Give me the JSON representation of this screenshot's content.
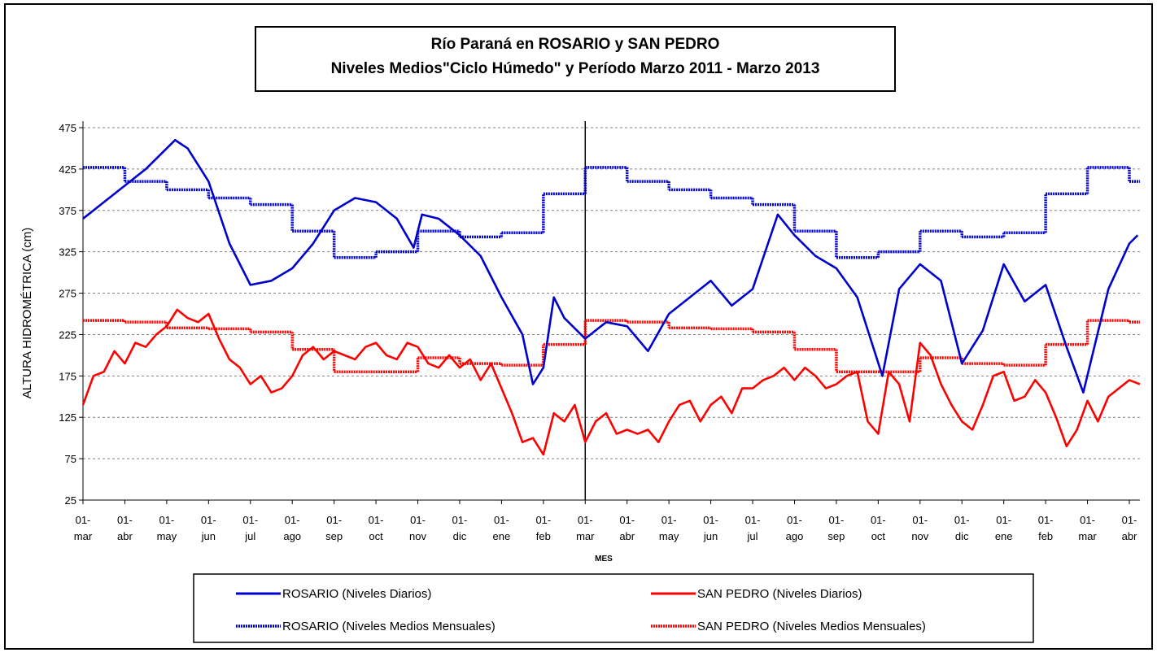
{
  "chart_data": {
    "type": "line",
    "title": "Río Paraná en ROSARIO y SAN PEDRO",
    "subtitle": "Niveles Medios\"Ciclo Húmedo\" y Período Marzo 2011 - Marzo 2013",
    "ylabel": "ALTURA HIDROMÉTRICA (cm)",
    "xlabel": "MES",
    "ylim": [
      25,
      475
    ],
    "yticks": [
      25,
      75,
      125,
      175,
      225,
      275,
      325,
      375,
      425,
      475
    ],
    "grid": true,
    "xlim": [
      0,
      25.25
    ],
    "xticks": [
      {
        "value": 0,
        "label": "01- mar"
      },
      {
        "value": 1,
        "label": "01- abr"
      },
      {
        "value": 2,
        "label": "01- may"
      },
      {
        "value": 3,
        "label": "01- jun"
      },
      {
        "value": 4,
        "label": "01- jul"
      },
      {
        "value": 5,
        "label": "01- ago"
      },
      {
        "value": 6,
        "label": "01- sep"
      },
      {
        "value": 7,
        "label": "01- oct"
      },
      {
        "value": 8,
        "label": "01- nov"
      },
      {
        "value": 9,
        "label": "01- dic"
      },
      {
        "value": 10,
        "label": "01- ene"
      },
      {
        "value": 11,
        "label": "01- feb"
      },
      {
        "value": 12,
        "label": "01- mar"
      },
      {
        "value": 13,
        "label": "01- abr"
      },
      {
        "value": 14,
        "label": "01- may"
      },
      {
        "value": 15,
        "label": "01- jun"
      },
      {
        "value": 16,
        "label": "01- jul"
      },
      {
        "value": 17,
        "label": "01- ago"
      },
      {
        "value": 18,
        "label": "01- sep"
      },
      {
        "value": 19,
        "label": "01- oct"
      },
      {
        "value": 20,
        "label": "01- nov"
      },
      {
        "value": 21,
        "label": "01- dic"
      },
      {
        "value": 22,
        "label": "01- ene"
      },
      {
        "value": 23,
        "label": "01- feb"
      },
      {
        "value": 24,
        "label": "01- mar"
      },
      {
        "value": 25,
        "label": "01- abr"
      }
    ],
    "vline": 12,
    "series": [
      {
        "name": "ROSARIO (Niveles Diarios)",
        "color": "#0000cc",
        "style": "solid",
        "x": [
          0,
          0.5,
          1,
          1.5,
          2,
          2.2,
          2.5,
          3,
          3.5,
          4,
          4.5,
          5,
          5.5,
          6,
          6.5,
          7,
          7.5,
          7.9,
          8.1,
          8.5,
          9,
          9.5,
          10,
          10.5,
          10.75,
          11,
          11.25,
          11.5,
          12,
          12.5,
          13,
          13.5,
          14,
          14.5,
          15,
          15.5,
          16,
          16.6,
          17,
          17.5,
          18,
          18.5,
          19.1,
          19.5,
          20,
          20.5,
          21,
          21.5,
          22,
          22.5,
          23,
          23.5,
          23.9,
          24.5,
          25,
          25.2
        ],
        "values": [
          365,
          385,
          405,
          425,
          450,
          460,
          450,
          410,
          335,
          285,
          290,
          305,
          335,
          375,
          390,
          385,
          365,
          330,
          370,
          365,
          345,
          320,
          270,
          225,
          165,
          185,
          270,
          245,
          220,
          240,
          235,
          205,
          250,
          270,
          290,
          260,
          280,
          370,
          345,
          320,
          305,
          270,
          175,
          280,
          310,
          290,
          190,
          230,
          310,
          265,
          285,
          210,
          155,
          280,
          335,
          345
        ]
      },
      {
        "name": "SAN PEDRO (Niveles Diarios)",
        "color": "#ff0000",
        "style": "solid",
        "x": [
          0,
          0.25,
          0.5,
          0.75,
          1,
          1.25,
          1.5,
          1.75,
          2,
          2.25,
          2.5,
          2.75,
          3,
          3.25,
          3.5,
          3.75,
          4,
          4.25,
          4.5,
          4.75,
          5,
          5.25,
          5.5,
          5.75,
          6,
          6.25,
          6.5,
          6.75,
          7,
          7.25,
          7.5,
          7.75,
          8,
          8.25,
          8.5,
          8.75,
          9,
          9.25,
          9.5,
          9.75,
          10,
          10.25,
          10.5,
          10.75,
          11,
          11.25,
          11.5,
          11.75,
          12,
          12.25,
          12.5,
          12.75,
          13,
          13.25,
          13.5,
          13.75,
          14,
          14.25,
          14.5,
          14.75,
          15,
          15.25,
          15.5,
          15.75,
          16,
          16.25,
          16.5,
          16.75,
          17,
          17.25,
          17.5,
          17.75,
          18,
          18.25,
          18.5,
          18.75,
          19,
          19.25,
          19.5,
          19.75,
          20,
          20.25,
          20.5,
          20.75,
          21,
          21.25,
          21.5,
          21.75,
          22,
          22.25,
          22.5,
          22.75,
          23,
          23.25,
          23.5,
          23.75,
          24,
          24.25,
          24.5,
          24.75,
          25,
          25.25
        ],
        "values": [
          140,
          175,
          180,
          205,
          190,
          215,
          210,
          225,
          235,
          255,
          245,
          240,
          250,
          220,
          195,
          185,
          165,
          175,
          155,
          160,
          175,
          200,
          210,
          195,
          205,
          200,
          195,
          210,
          215,
          200,
          195,
          215,
          210,
          190,
          185,
          200,
          185,
          195,
          170,
          190,
          160,
          130,
          95,
          100,
          80,
          130,
          120,
          140,
          95,
          120,
          130,
          105,
          110,
          105,
          110,
          95,
          120,
          140,
          145,
          120,
          140,
          150,
          130,
          160,
          160,
          170,
          175,
          185,
          170,
          185,
          175,
          160,
          165,
          175,
          180,
          120,
          105,
          180,
          165,
          120,
          215,
          200,
          165,
          140,
          120,
          110,
          140,
          175,
          180,
          145,
          150,
          170,
          155,
          125,
          90,
          110,
          145,
          120,
          150,
          160,
          170,
          165
        ]
      },
      {
        "name": "ROSARIO (Niveles Medios Mensuales)",
        "color": "#0000cc",
        "style": "step",
        "x": [
          0,
          1,
          2,
          3,
          4,
          5,
          6,
          7,
          8,
          9,
          10,
          11,
          12,
          13,
          14,
          15,
          16,
          17,
          18,
          19,
          20,
          21,
          22,
          23,
          24,
          25
        ],
        "values": [
          427,
          410,
          400,
          390,
          382,
          350,
          318,
          325,
          350,
          343,
          348,
          395,
          427,
          410,
          400,
          390,
          382,
          350,
          318,
          325,
          350,
          343,
          348,
          395,
          427,
          410
        ]
      },
      {
        "name": "SAN PEDRO (Niveles Medios Mensuales)",
        "color": "#ff0000",
        "style": "step",
        "x": [
          0,
          1,
          2,
          3,
          4,
          5,
          6,
          7,
          8,
          9,
          10,
          11,
          12,
          13,
          14,
          15,
          16,
          17,
          18,
          19,
          20,
          21,
          22,
          23,
          24,
          25
        ],
        "values": [
          242,
          240,
          233,
          232,
          228,
          207,
          180,
          180,
          197,
          190,
          188,
          213,
          242,
          240,
          233,
          232,
          228,
          207,
          180,
          180,
          197,
          190,
          188,
          213,
          242,
          240
        ]
      }
    ]
  }
}
